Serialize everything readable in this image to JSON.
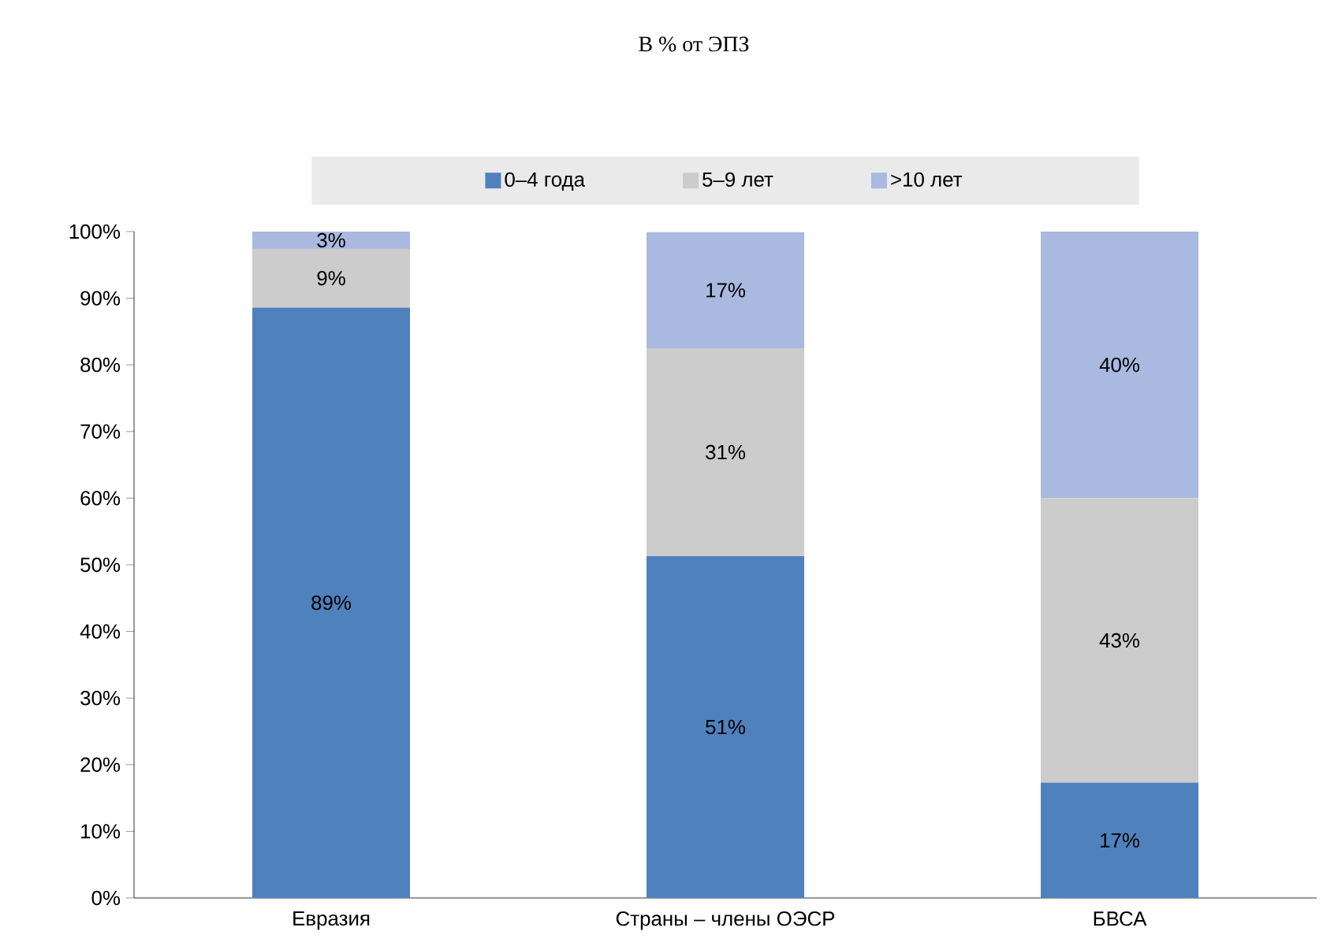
{
  "chart_data": {
    "type": "bar",
    "stacked": true,
    "title": "В % от ЭПЗ",
    "categories": [
      "Евразия",
      "Страны – члены ОЭСР",
      "БВСА"
    ],
    "series": [
      {
        "name": "0–4 года",
        "color": "#4f81bd",
        "values": [
          88.6,
          51.3,
          17.3
        ],
        "value_labels": [
          "89%",
          "51%",
          "17%"
        ]
      },
      {
        "name": "5–9 лет",
        "color": "#cccccc",
        "values": [
          8.8,
          31.2,
          42.7
        ],
        "value_labels": [
          "9%",
          "31%",
          "43%"
        ]
      },
      {
        "name": ">10 лет",
        "color": "#a9b9e0",
        "values": [
          2.6,
          17.4,
          40.0
        ],
        "value_labels": [
          "3%",
          "17%",
          "40%"
        ]
      }
    ],
    "ylim": [
      0,
      100
    ],
    "yticks": [
      {
        "value": 0,
        "label": "0%"
      },
      {
        "value": 10,
        "label": "10%"
      },
      {
        "value": 20,
        "label": "20%"
      },
      {
        "value": 30,
        "label": "30%"
      },
      {
        "value": 40,
        "label": "40%"
      },
      {
        "value": 50,
        "label": "50%"
      },
      {
        "value": 60,
        "label": "60%"
      },
      {
        "value": 70,
        "label": "70%"
      },
      {
        "value": 80,
        "label": "80%"
      },
      {
        "value": 90,
        "label": "90%"
      },
      {
        "value": 100,
        "label": "100%"
      }
    ],
    "legend": "top",
    "grid": false
  }
}
